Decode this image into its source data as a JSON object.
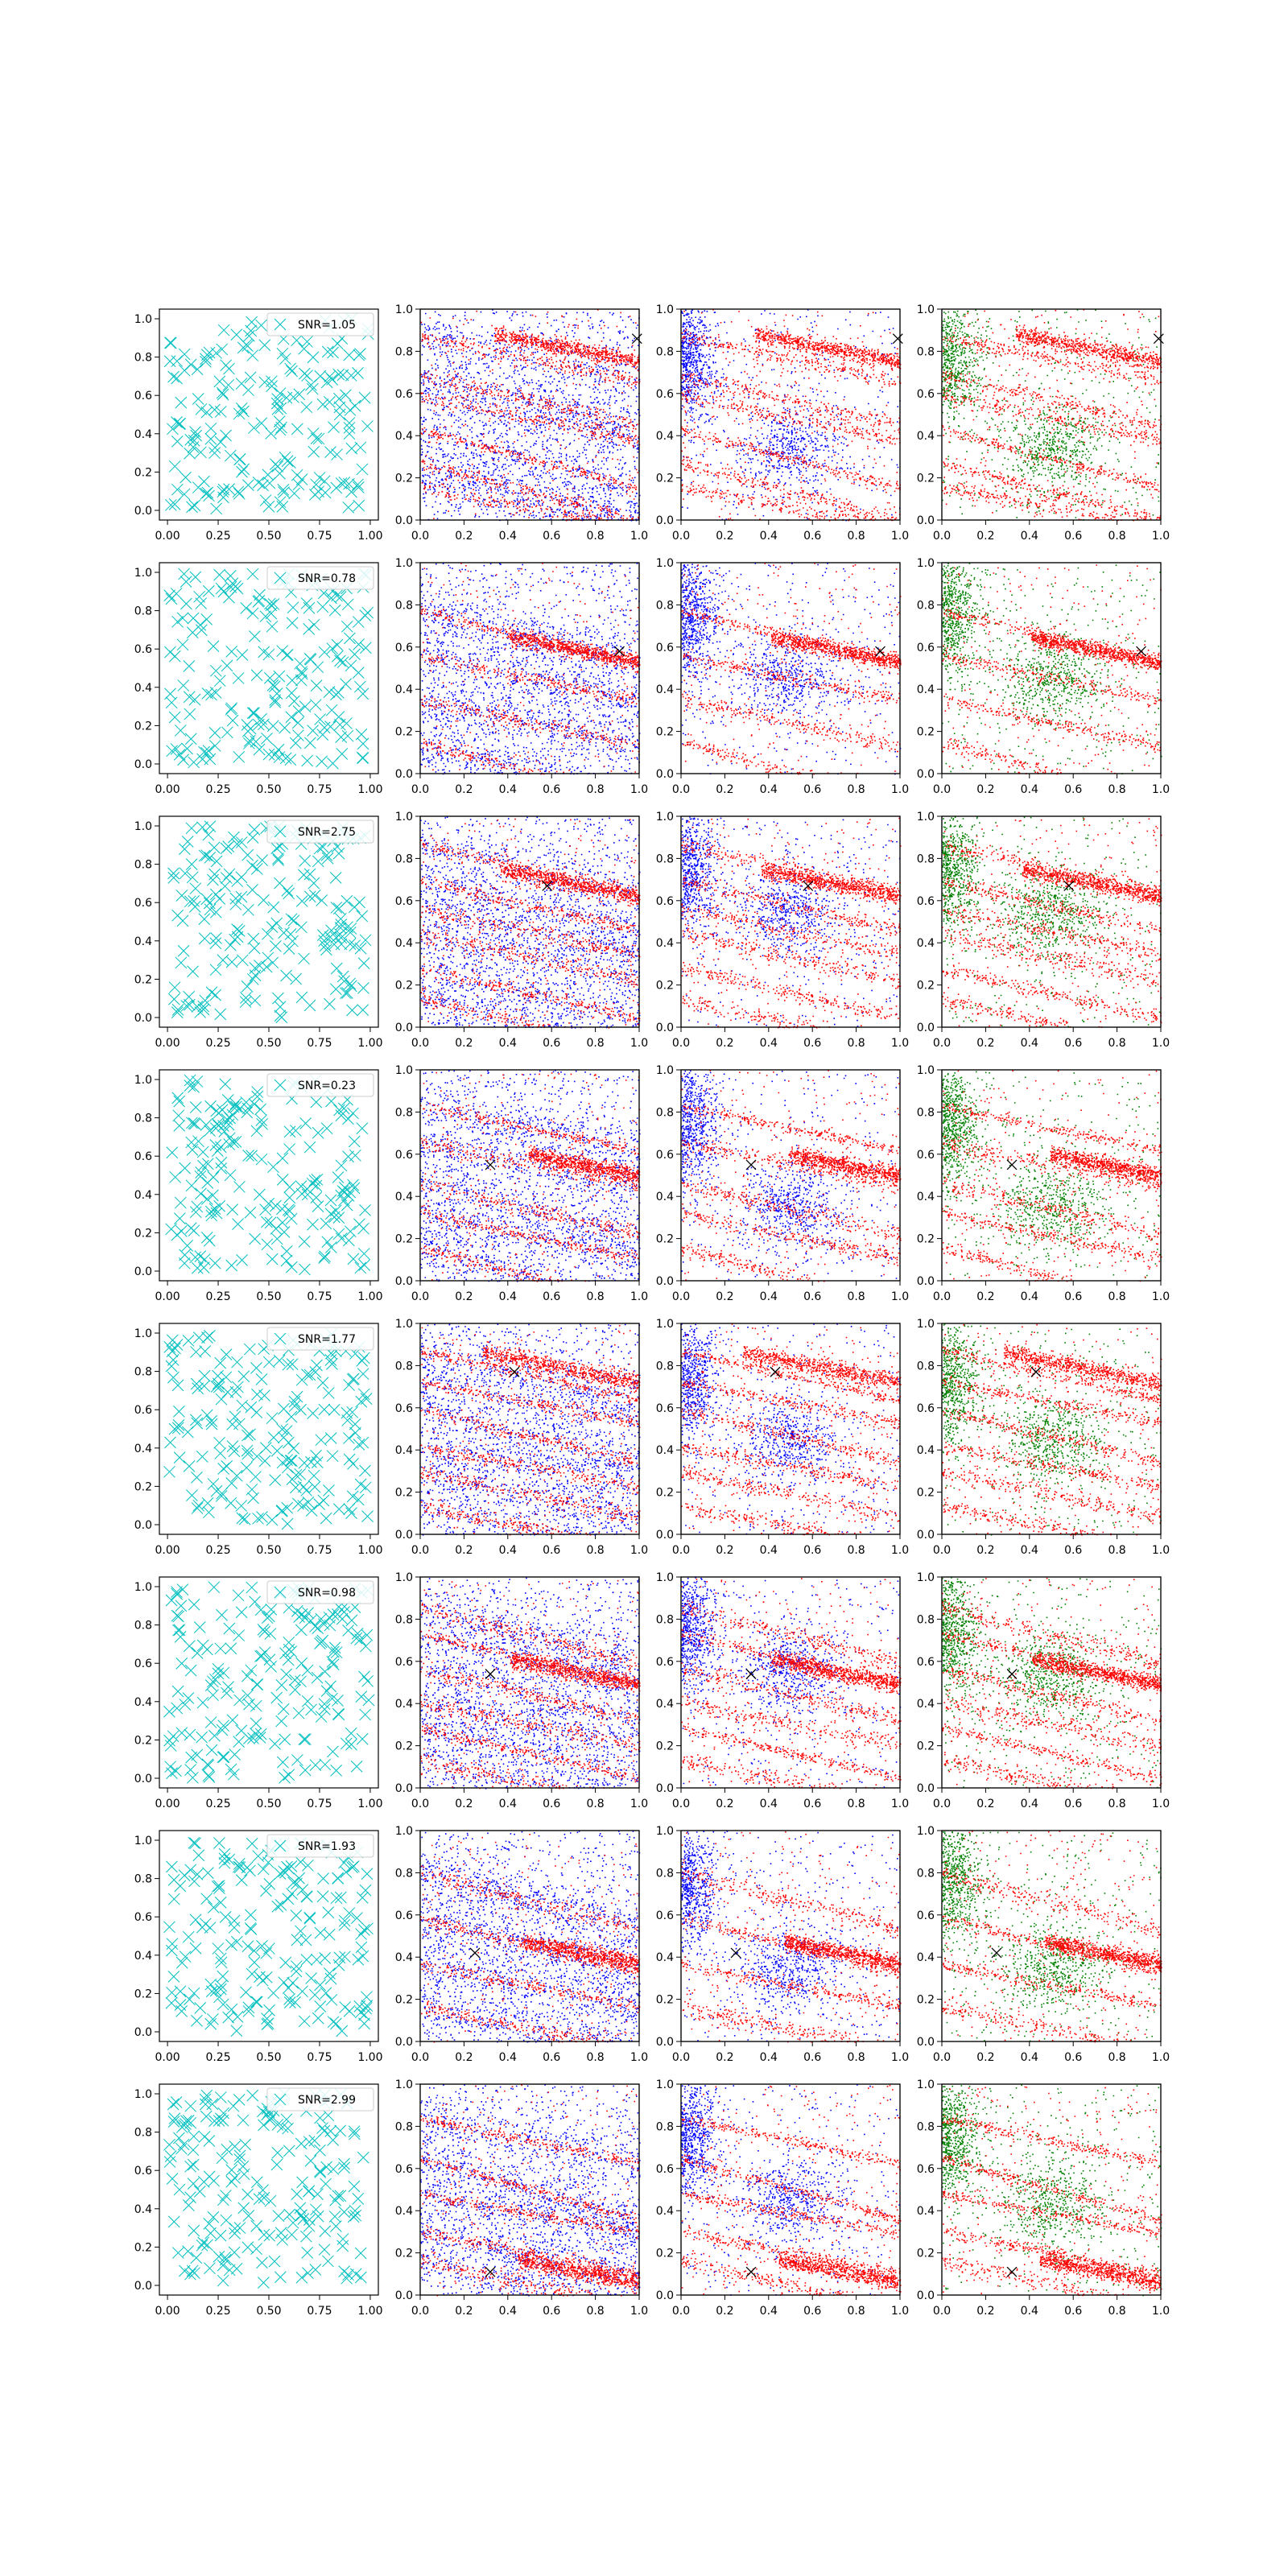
{
  "figure": {
    "columns": [
      {
        "kind": "scatter_x",
        "colors": [
          "#00bfbf"
        ]
      },
      {
        "kind": "density",
        "colors": [
          "#0000ff",
          "#ff0000"
        ]
      },
      {
        "kind": "density",
        "colors": [
          "#0000ff",
          "#ff0000"
        ]
      },
      {
        "kind": "density",
        "colors": [
          "#008000",
          "#ff0000"
        ]
      }
    ],
    "col1_xticks": [
      "0.00",
      "0.25",
      "0.50",
      "0.75",
      "1.00"
    ],
    "col1_xtick_values": [
      0,
      0.25,
      0.5,
      0.75,
      1.0
    ],
    "density_xticks": [
      "0.0",
      "0.2",
      "0.4",
      "0.6",
      "0.8",
      "1.0"
    ],
    "density_xtick_values": [
      0,
      0.2,
      0.4,
      0.6,
      0.8,
      1.0
    ],
    "yticks": [
      "0.0",
      "0.2",
      "0.4",
      "0.6",
      "0.8",
      "1.0"
    ],
    "ytick_values": [
      0,
      0.2,
      0.4,
      0.6,
      0.8,
      1.0
    ],
    "marker_color": "#000000",
    "legend_marker_color": "#00bfbf"
  },
  "chart_data": [
    {
      "row": 1,
      "type": "scatter",
      "legend": "SNR=1.05",
      "xlim": [
        0,
        1
      ],
      "ylim": [
        0,
        1
      ],
      "marker": [
        0.99,
        0.86
      ]
    },
    {
      "row": 2,
      "type": "scatter",
      "legend": "SNR=0.78",
      "xlim": [
        0,
        1
      ],
      "ylim": [
        0,
        1
      ],
      "marker": [
        0.91,
        0.58
      ]
    },
    {
      "row": 3,
      "type": "scatter",
      "legend": "SNR=2.75",
      "xlim": [
        0,
        1
      ],
      "ylim": [
        0,
        1
      ],
      "marker": [
        0.58,
        0.67
      ]
    },
    {
      "row": 4,
      "type": "scatter",
      "legend": "SNR=0.23",
      "xlim": [
        0,
        1
      ],
      "ylim": [
        0,
        1
      ],
      "marker": [
        0.32,
        0.55
      ]
    },
    {
      "row": 5,
      "type": "scatter",
      "legend": "SNR=1.77",
      "xlim": [
        0,
        1
      ],
      "ylim": [
        0,
        1
      ],
      "marker": [
        0.43,
        0.77
      ]
    },
    {
      "row": 6,
      "type": "scatter",
      "legend": "SNR=0.98",
      "xlim": [
        0,
        1
      ],
      "ylim": [
        0,
        1
      ],
      "marker": [
        0.32,
        0.54
      ]
    },
    {
      "row": 7,
      "type": "scatter",
      "legend": "SNR=1.93",
      "xlim": [
        0,
        1
      ],
      "ylim": [
        0,
        1
      ],
      "marker": [
        0.25,
        0.42
      ]
    },
    {
      "row": 8,
      "type": "scatter",
      "legend": "SNR=2.99",
      "xlim": [
        0,
        1
      ],
      "ylim": [
        0,
        1
      ],
      "marker": [
        0.32,
        0.11
      ]
    }
  ]
}
